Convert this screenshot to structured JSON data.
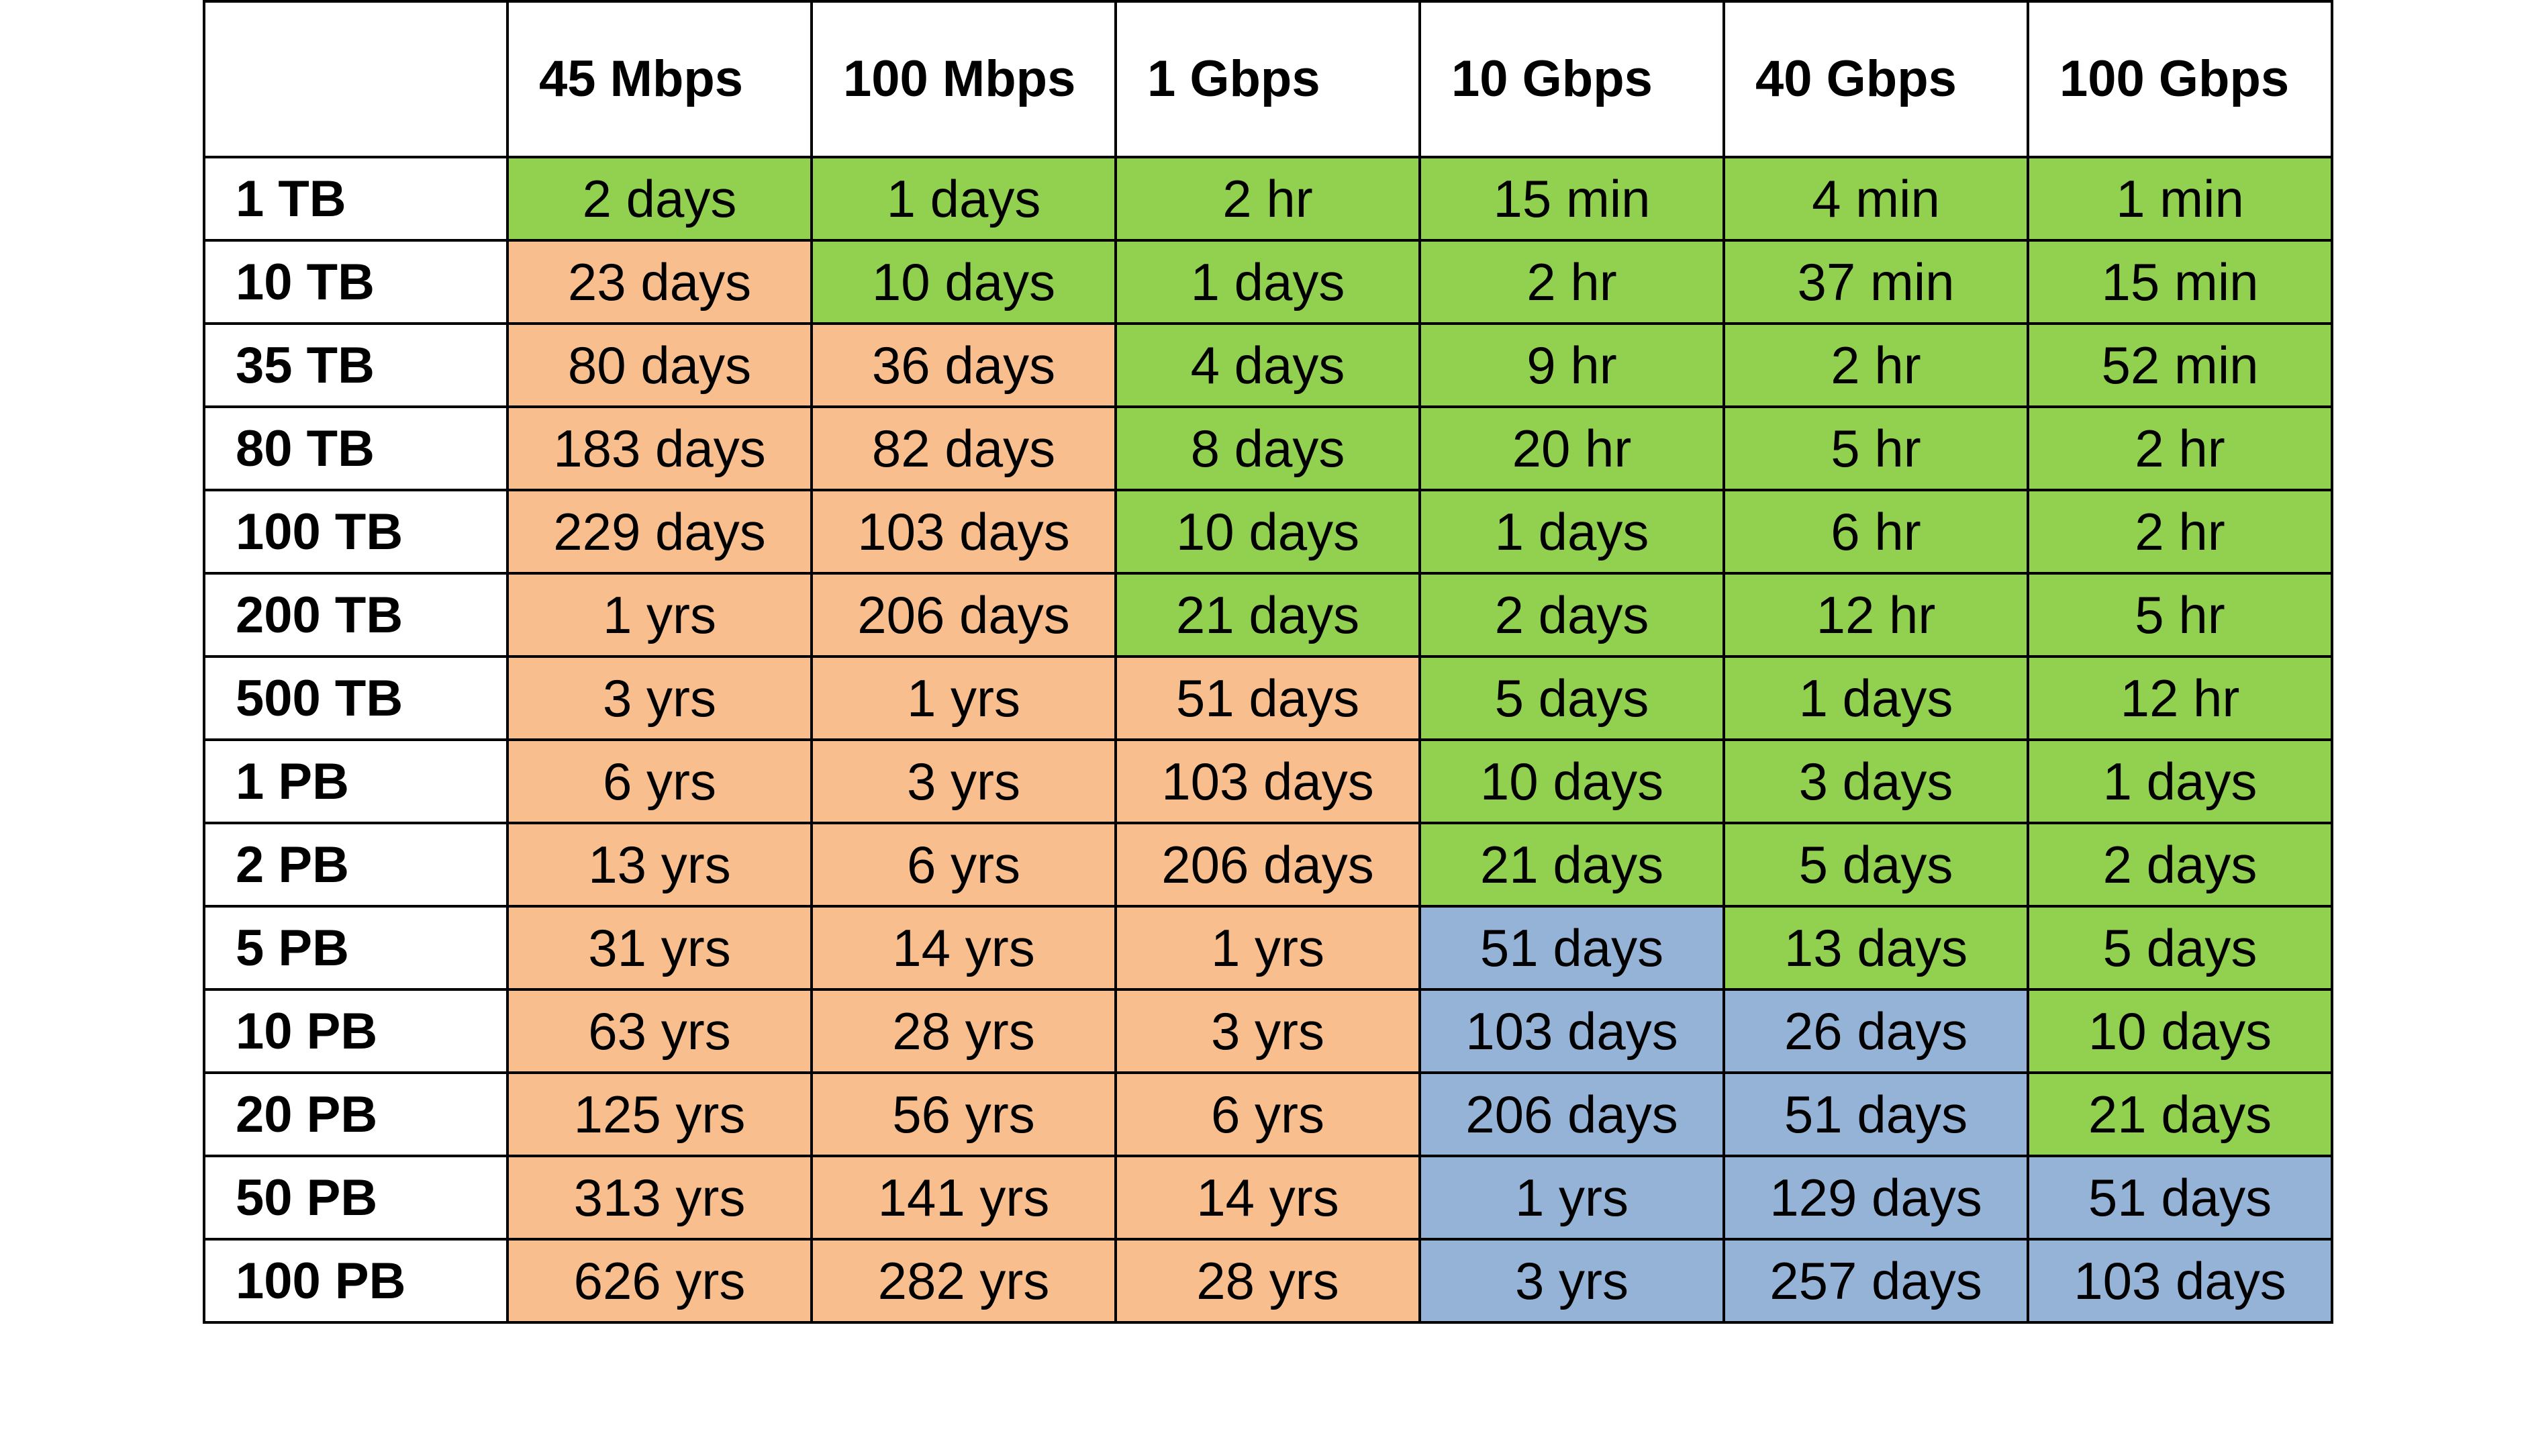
{
  "table": {
    "corner": "",
    "columns": [
      "45 Mbps",
      "100 Mbps",
      "1 Gbps",
      "10 Gbps",
      "40 Gbps",
      "100 Gbps"
    ],
    "colors": {
      "green": "#92d050",
      "orange": "#f8be8e",
      "blue": "#95b3d7"
    },
    "rows": [
      {
        "label": "1 TB",
        "cells": [
          {
            "text": "2 days",
            "color": "green"
          },
          {
            "text": "1 days",
            "color": "green"
          },
          {
            "text": "2 hr",
            "color": "green"
          },
          {
            "text": "15 min",
            "color": "green"
          },
          {
            "text": "4 min",
            "color": "green"
          },
          {
            "text": "1 min",
            "color": "green"
          }
        ]
      },
      {
        "label": "10 TB",
        "cells": [
          {
            "text": "23 days",
            "color": "orange"
          },
          {
            "text": "10 days",
            "color": "green"
          },
          {
            "text": "1 days",
            "color": "green"
          },
          {
            "text": "2 hr",
            "color": "green"
          },
          {
            "text": "37 min",
            "color": "green"
          },
          {
            "text": "15 min",
            "color": "green"
          }
        ]
      },
      {
        "label": "35 TB",
        "cells": [
          {
            "text": "80 days",
            "color": "orange"
          },
          {
            "text": "36 days",
            "color": "orange"
          },
          {
            "text": "4 days",
            "color": "green"
          },
          {
            "text": "9 hr",
            "color": "green"
          },
          {
            "text": "2 hr",
            "color": "green"
          },
          {
            "text": "52 min",
            "color": "green"
          }
        ]
      },
      {
        "label": "80 TB",
        "cells": [
          {
            "text": "183 days",
            "color": "orange"
          },
          {
            "text": "82 days",
            "color": "orange"
          },
          {
            "text": "8 days",
            "color": "green"
          },
          {
            "text": "20 hr",
            "color": "green"
          },
          {
            "text": "5 hr",
            "color": "green"
          },
          {
            "text": "2 hr",
            "color": "green"
          }
        ]
      },
      {
        "label": "100 TB",
        "cells": [
          {
            "text": "229 days",
            "color": "orange"
          },
          {
            "text": "103 days",
            "color": "orange"
          },
          {
            "text": "10 days",
            "color": "green"
          },
          {
            "text": "1 days",
            "color": "green"
          },
          {
            "text": "6 hr",
            "color": "green"
          },
          {
            "text": "2 hr",
            "color": "green"
          }
        ]
      },
      {
        "label": "200 TB",
        "cells": [
          {
            "text": "1 yrs",
            "color": "orange"
          },
          {
            "text": "206 days",
            "color": "orange"
          },
          {
            "text": "21 days",
            "color": "green"
          },
          {
            "text": "2 days",
            "color": "green"
          },
          {
            "text": "12 hr",
            "color": "green"
          },
          {
            "text": "5 hr",
            "color": "green"
          }
        ]
      },
      {
        "label": "500 TB",
        "cells": [
          {
            "text": "3 yrs",
            "color": "orange"
          },
          {
            "text": "1 yrs",
            "color": "orange"
          },
          {
            "text": "51 days",
            "color": "orange"
          },
          {
            "text": "5 days",
            "color": "green"
          },
          {
            "text": "1 days",
            "color": "green"
          },
          {
            "text": "12 hr",
            "color": "green"
          }
        ]
      },
      {
        "label": "1 PB",
        "cells": [
          {
            "text": "6 yrs",
            "color": "orange"
          },
          {
            "text": "3 yrs",
            "color": "orange"
          },
          {
            "text": "103 days",
            "color": "orange"
          },
          {
            "text": "10 days",
            "color": "green"
          },
          {
            "text": "3 days",
            "color": "green"
          },
          {
            "text": "1 days",
            "color": "green"
          }
        ]
      },
      {
        "label": "2 PB",
        "cells": [
          {
            "text": "13 yrs",
            "color": "orange"
          },
          {
            "text": "6 yrs",
            "color": "orange"
          },
          {
            "text": "206 days",
            "color": "orange"
          },
          {
            "text": "21 days",
            "color": "green"
          },
          {
            "text": "5 days",
            "color": "green"
          },
          {
            "text": "2 days",
            "color": "green"
          }
        ]
      },
      {
        "label": "5 PB",
        "cells": [
          {
            "text": "31 yrs",
            "color": "orange"
          },
          {
            "text": "14 yrs",
            "color": "orange"
          },
          {
            "text": "1 yrs",
            "color": "orange"
          },
          {
            "text": "51 days",
            "color": "blue"
          },
          {
            "text": "13 days",
            "color": "green"
          },
          {
            "text": "5 days",
            "color": "green"
          }
        ]
      },
      {
        "label": "10 PB",
        "cells": [
          {
            "text": "63 yrs",
            "color": "orange"
          },
          {
            "text": "28 yrs",
            "color": "orange"
          },
          {
            "text": "3 yrs",
            "color": "orange"
          },
          {
            "text": "103 days",
            "color": "blue"
          },
          {
            "text": "26 days",
            "color": "blue"
          },
          {
            "text": "10 days",
            "color": "green"
          }
        ]
      },
      {
        "label": "20 PB",
        "cells": [
          {
            "text": "125 yrs",
            "color": "orange"
          },
          {
            "text": "56 yrs",
            "color": "orange"
          },
          {
            "text": "6 yrs",
            "color": "orange"
          },
          {
            "text": "206 days",
            "color": "blue"
          },
          {
            "text": "51 days",
            "color": "blue"
          },
          {
            "text": "21 days",
            "color": "green"
          }
        ]
      },
      {
        "label": "50 PB",
        "cells": [
          {
            "text": "313 yrs",
            "color": "orange"
          },
          {
            "text": "141 yrs",
            "color": "orange"
          },
          {
            "text": "14 yrs",
            "color": "orange"
          },
          {
            "text": "1 yrs",
            "color": "blue"
          },
          {
            "text": "129 days",
            "color": "blue"
          },
          {
            "text": "51 days",
            "color": "blue"
          }
        ]
      },
      {
        "label": "100 PB",
        "cells": [
          {
            "text": "626 yrs",
            "color": "orange"
          },
          {
            "text": "282 yrs",
            "color": "orange"
          },
          {
            "text": "28 yrs",
            "color": "orange"
          },
          {
            "text": "3 yrs",
            "color": "blue"
          },
          {
            "text": "257 days",
            "color": "blue"
          },
          {
            "text": "103 days",
            "color": "blue"
          }
        ]
      }
    ]
  }
}
